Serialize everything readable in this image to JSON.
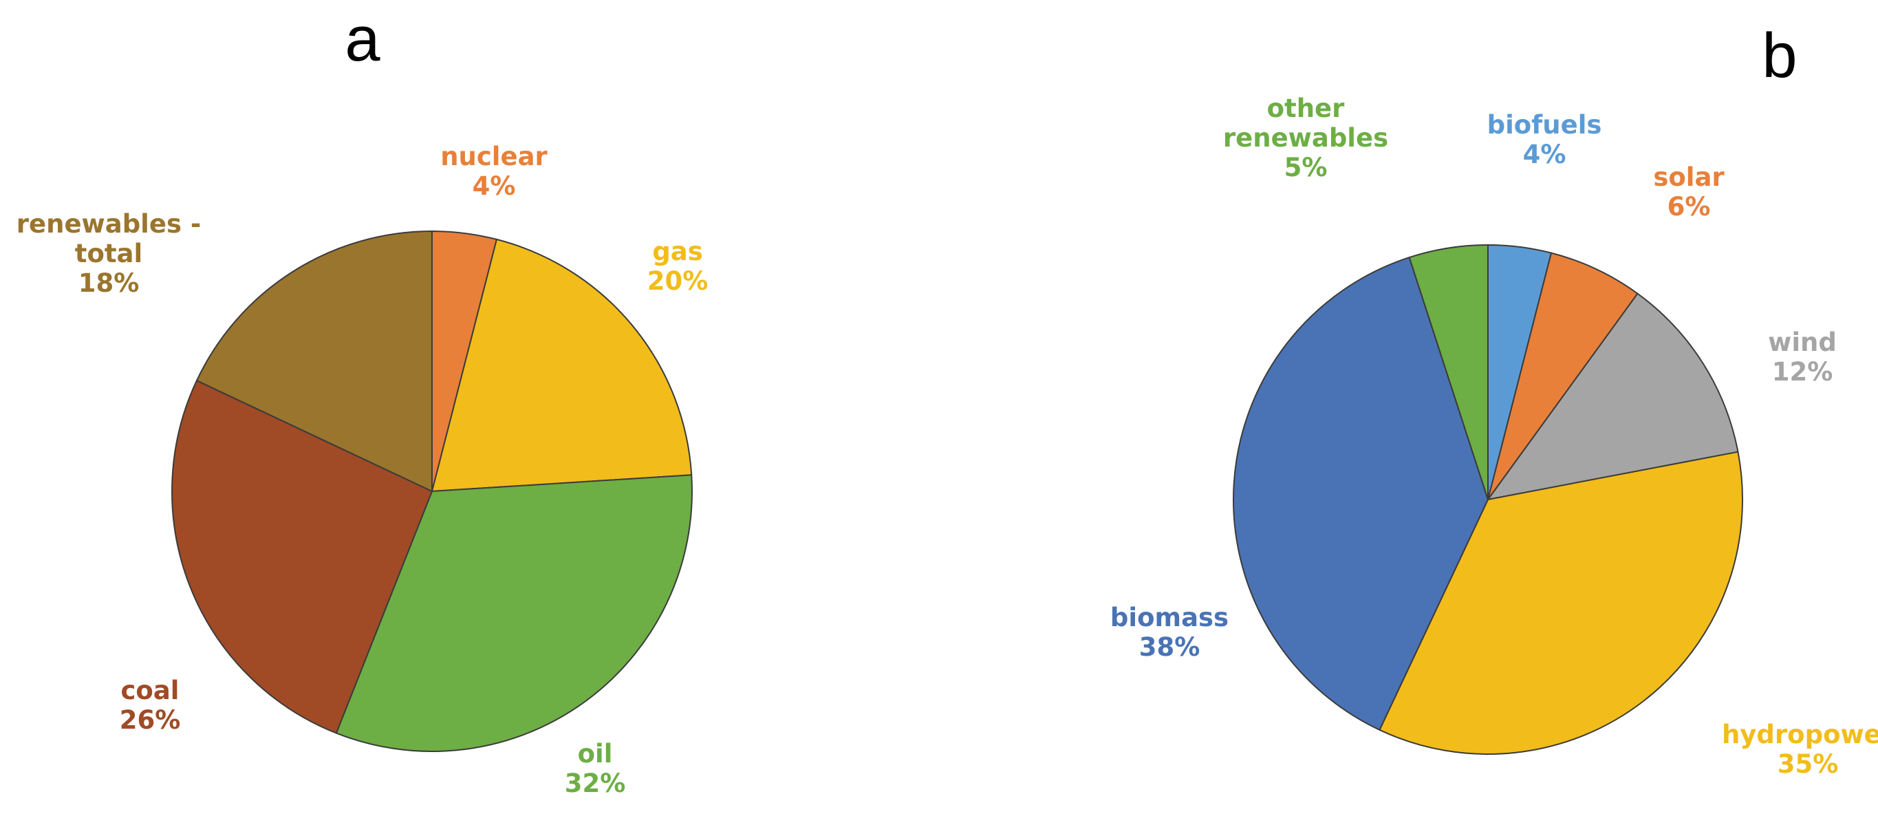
{
  "chart_data": [
    {
      "type": "pie",
      "title": "a",
      "slices": [
        {
          "label": "nuclear",
          "value": 4,
          "value_text": "4%",
          "color": "#E8803A"
        },
        {
          "label": "gas",
          "value": 20,
          "value_text": "20%",
          "color": "#F2BC1A"
        },
        {
          "label": "oil",
          "value": 32,
          "value_text": "32%",
          "color": "#6DAE45"
        },
        {
          "label": "coal",
          "value": 26,
          "value_text": "26%",
          "color": "#A04B26"
        },
        {
          "label": "renewables - total",
          "label_lines": [
            "renewables -",
            "total"
          ],
          "value": 18,
          "value_text": "18%",
          "color": "#9A752D"
        }
      ]
    },
    {
      "type": "pie",
      "title": "b",
      "slices": [
        {
          "label": "biofuels",
          "value": 4,
          "value_text": "4%",
          "color": "#5B9BD5"
        },
        {
          "label": "solar",
          "value": 6,
          "value_text": "6%",
          "color": "#E8803A"
        },
        {
          "label": "wind",
          "value": 12,
          "value_text": "12%",
          "color": "#A5A5A5"
        },
        {
          "label": "hydropower",
          "value": 35,
          "value_text": "35%",
          "color": "#F2BC1A"
        },
        {
          "label": "biomass",
          "value": 38,
          "value_text": "38%",
          "color": "#4A73B5"
        },
        {
          "label": "other renewables",
          "label_lines": [
            "other",
            "renewables"
          ],
          "value": 5,
          "value_text": "5%",
          "color": "#6DAE45"
        }
      ]
    }
  ]
}
